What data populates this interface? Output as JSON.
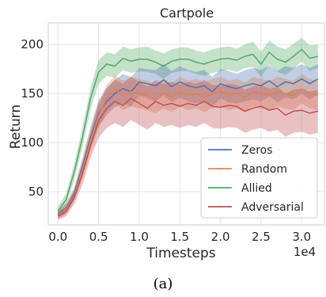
{
  "caption": "(a)",
  "chart_data": {
    "type": "line",
    "title": "Cartpole",
    "xlabel": "Timesteps",
    "ylabel": "Return",
    "x_offset_label": "1e4",
    "xlim": [
      -0.12,
      3.28
    ],
    "ylim": [
      16,
      222
    ],
    "xticks": [
      0.0,
      0.5,
      1.0,
      1.5,
      2.0,
      2.5,
      3.0
    ],
    "xtick_labels": [
      "0.0",
      "0.5",
      "1.0",
      "1.5",
      "2.0",
      "2.5",
      "3.0"
    ],
    "yticks": [
      50,
      100,
      150,
      200
    ],
    "ytick_labels": [
      "50",
      "100",
      "150",
      "200"
    ],
    "grid": true,
    "legend_position": "bottom-right",
    "x": [
      0.0,
      0.1,
      0.2,
      0.3,
      0.4,
      0.5,
      0.6,
      0.7,
      0.8,
      0.9,
      1.0,
      1.1,
      1.2,
      1.3,
      1.4,
      1.5,
      1.6,
      1.7,
      1.8,
      1.9,
      2.0,
      2.1,
      2.2,
      2.3,
      2.4,
      2.5,
      2.6,
      2.7,
      2.8,
      2.9,
      3.0,
      3.1,
      3.2
    ],
    "series": [
      {
        "name": "Zeros",
        "color": "#4c72b0",
        "values": [
          27,
          33,
          48,
          75,
          105,
          130,
          142,
          150,
          155,
          152,
          162,
          160,
          158,
          164,
          157,
          162,
          158,
          156,
          158,
          152,
          160,
          157,
          155,
          158,
          160,
          158,
          163,
          157,
          162,
          160,
          165,
          160,
          165
        ],
        "lower": [
          23,
          28,
          42,
          66,
          94,
          117,
          128,
          136,
          140,
          137,
          148,
          145,
          142,
          148,
          141,
          146,
          142,
          140,
          142,
          137,
          145,
          141,
          140,
          142,
          144,
          142,
          147,
          141,
          146,
          144,
          150,
          144,
          150
        ],
        "upper": [
          31,
          38,
          54,
          84,
          116,
          143,
          156,
          164,
          170,
          167,
          176,
          175,
          174,
          180,
          173,
          178,
          174,
          172,
          174,
          167,
          175,
          173,
          170,
          174,
          176,
          174,
          179,
          173,
          178,
          176,
          180,
          176,
          180
        ]
      },
      {
        "name": "Random",
        "color": "#dd8452",
        "values": [
          26,
          32,
          46,
          72,
          102,
          128,
          145,
          155,
          148,
          152,
          150,
          148,
          145,
          150,
          146,
          152,
          148,
          150,
          146,
          150,
          152,
          148,
          150,
          146,
          152,
          150,
          148,
          152,
          150,
          148,
          155,
          150,
          148
        ],
        "lower": [
          22,
          27,
          40,
          63,
          91,
          115,
          131,
          140,
          133,
          137,
          135,
          133,
          130,
          135,
          131,
          137,
          133,
          135,
          131,
          135,
          137,
          133,
          135,
          131,
          137,
          135,
          133,
          137,
          135,
          133,
          140,
          135,
          133
        ],
        "upper": [
          30,
          37,
          52,
          81,
          113,
          141,
          159,
          168,
          163,
          167,
          165,
          163,
          160,
          165,
          161,
          167,
          163,
          165,
          161,
          165,
          167,
          163,
          165,
          161,
          167,
          165,
          163,
          167,
          165,
          163,
          170,
          165,
          163
        ]
      },
      {
        "name": "Allied",
        "color": "#55a868",
        "values": [
          30,
          42,
          70,
          105,
          145,
          172,
          180,
          178,
          186,
          183,
          185,
          185,
          182,
          178,
          183,
          185,
          185,
          182,
          180,
          183,
          185,
          186,
          184,
          188,
          190,
          180,
          192,
          185,
          182,
          188,
          195,
          186,
          188
        ],
        "lower": [
          25,
          36,
          62,
          95,
          134,
          160,
          168,
          166,
          174,
          171,
          173,
          172,
          170,
          165,
          171,
          173,
          173,
          170,
          168,
          171,
          173,
          174,
          172,
          176,
          177,
          167,
          180,
          172,
          169,
          175,
          183,
          173,
          176
        ],
        "upper": [
          35,
          48,
          78,
          115,
          156,
          184,
          192,
          190,
          198,
          195,
          197,
          198,
          194,
          191,
          195,
          197,
          197,
          194,
          192,
          195,
          197,
          198,
          196,
          200,
          203,
          193,
          204,
          198,
          195,
          201,
          207,
          199,
          200
        ]
      },
      {
        "name": "Adversarial",
        "color": "#c44e52",
        "values": [
          25,
          30,
          44,
          68,
          97,
          122,
          135,
          142,
          138,
          145,
          140,
          135,
          142,
          138,
          140,
          137,
          140,
          138,
          142,
          137,
          136,
          138,
          137,
          132,
          135,
          137,
          133,
          135,
          128,
          132,
          133,
          130,
          132
        ],
        "lower": [
          21,
          25,
          37,
          57,
          84,
          105,
          115,
          120,
          116,
          123,
          118,
          113,
          120,
          116,
          118,
          115,
          118,
          116,
          120,
          115,
          114,
          116,
          115,
          110,
          113,
          115,
          111,
          113,
          106,
          110,
          111,
          108,
          110
        ],
        "upper": [
          29,
          35,
          51,
          79,
          110,
          139,
          155,
          164,
          160,
          167,
          162,
          157,
          164,
          160,
          162,
          159,
          162,
          160,
          164,
          159,
          158,
          160,
          159,
          154,
          157,
          159,
          155,
          157,
          150,
          154,
          155,
          152,
          154
        ]
      }
    ]
  }
}
